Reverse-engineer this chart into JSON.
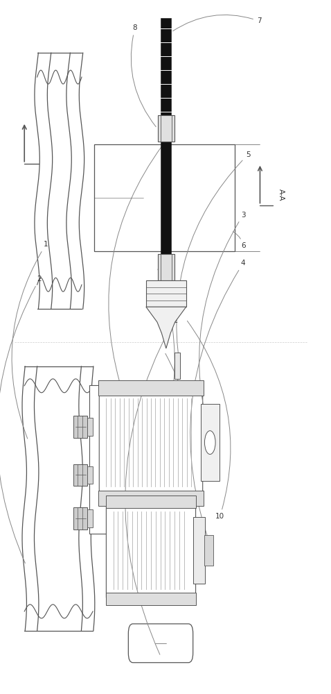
{
  "bg_color": "#ffffff",
  "line_color": "#555555",
  "dark_color": "#1a1a1a",
  "light_gray": "#cccccc",
  "mid_gray": "#999999",
  "fig_width": 4.78,
  "fig_height": 10.0
}
